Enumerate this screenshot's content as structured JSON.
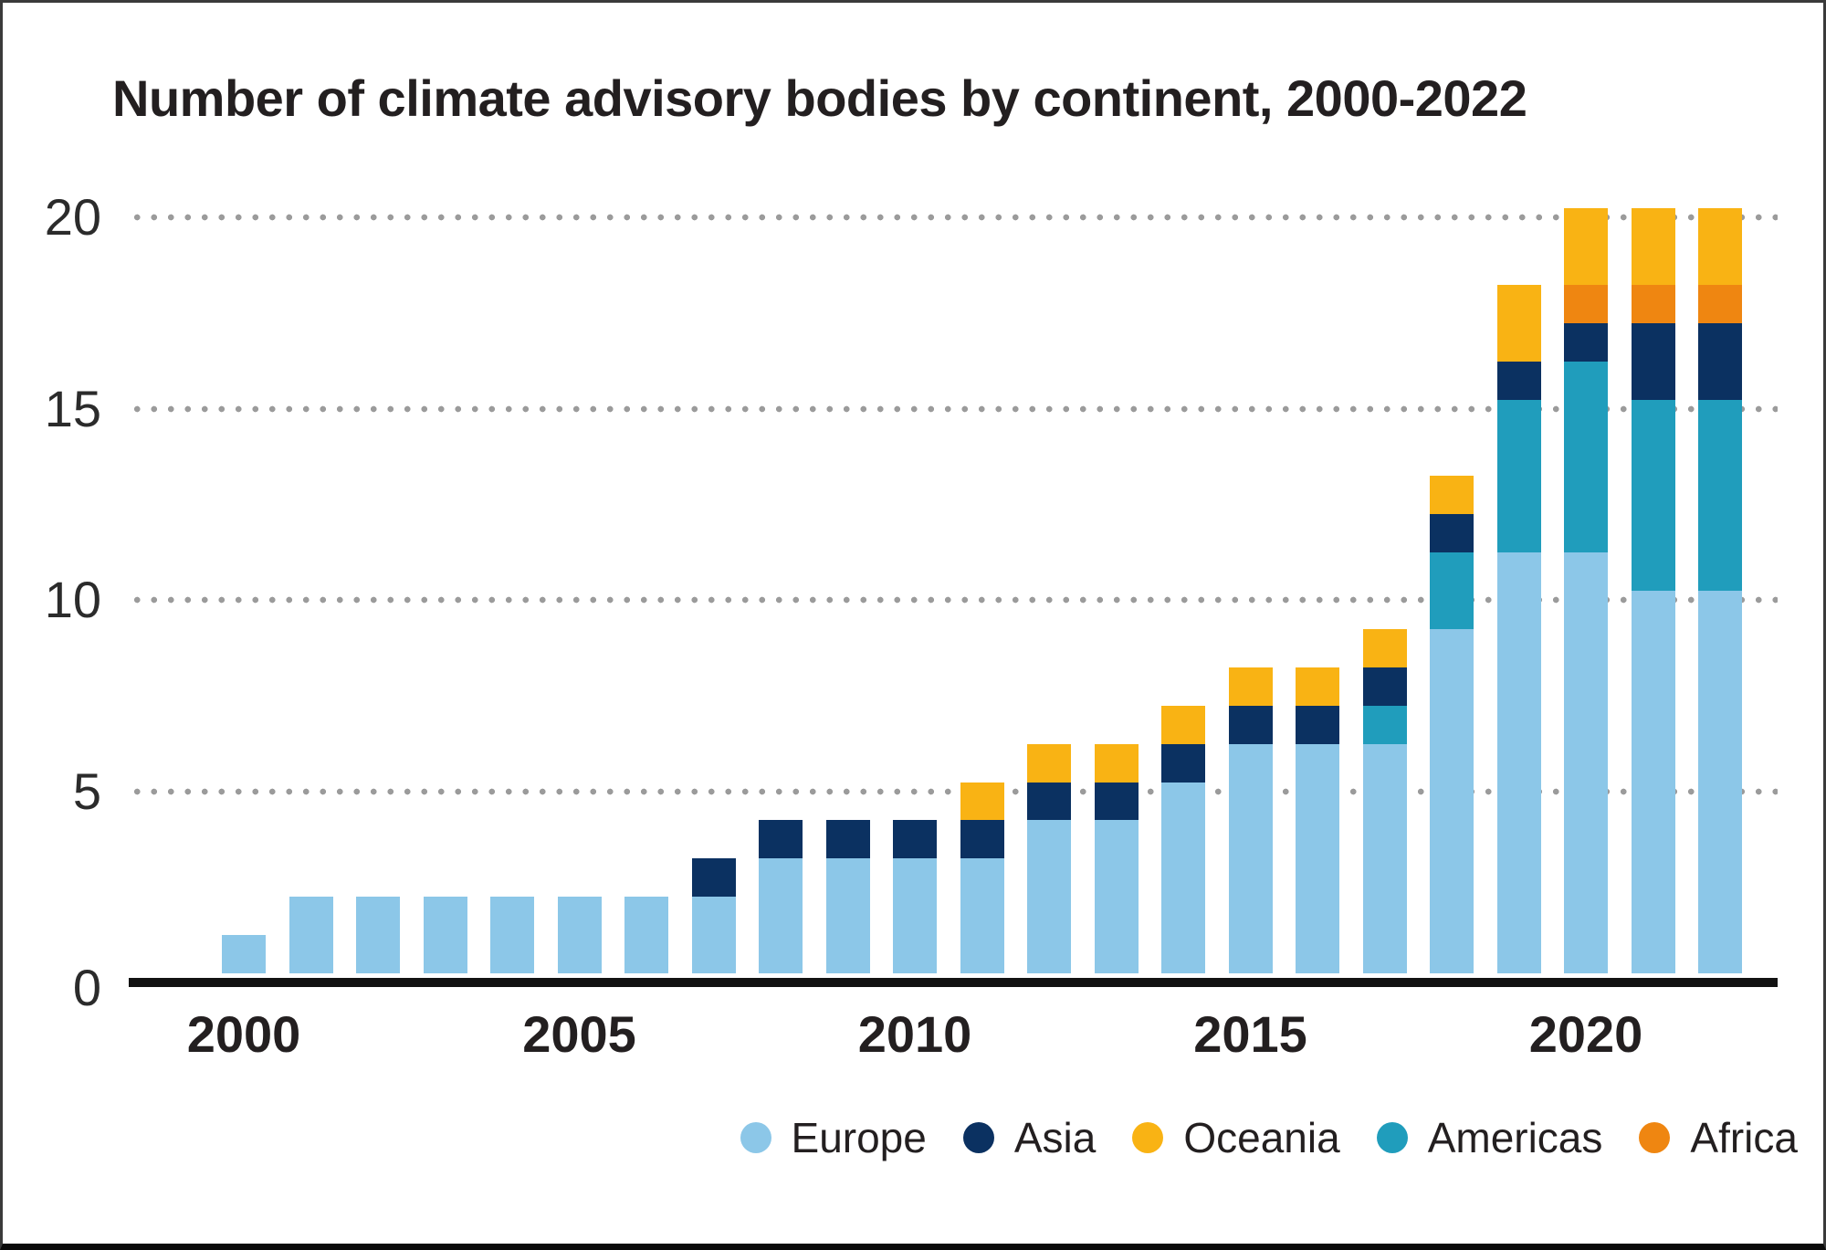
{
  "title": "Number of climate advisory bodies by continent, 2000-2022",
  "colors": {
    "background": "#ffffff",
    "text": "#231f20",
    "axis_line": "#121212",
    "grid_dot": "#9b9b9b",
    "border_top": "#3a3a3a",
    "border_bottom": "#0a0a0a"
  },
  "chart_data": {
    "type": "bar",
    "stacked": true,
    "title": "Number of climate advisory bodies by continent, 2000-2022",
    "xlabel": "",
    "ylabel": "",
    "x": [
      2000,
      2001,
      2002,
      2003,
      2004,
      2005,
      2006,
      2007,
      2008,
      2009,
      2010,
      2011,
      2012,
      2013,
      2014,
      2015,
      2016,
      2017,
      2018,
      2019,
      2020,
      2021,
      2022
    ],
    "xticks": [
      2000,
      2005,
      2010,
      2015,
      2020
    ],
    "yticks": [
      0,
      5,
      10,
      15,
      20
    ],
    "ylim": [
      0,
      20
    ],
    "grid": "horizontal dotted lines at 5,10,15,20",
    "legend_position": "bottom-right",
    "stack_order": "bottom to top as listed in series",
    "series": [
      {
        "name": "Europe",
        "color": "#8cc7e8",
        "values": [
          1,
          2,
          2,
          2,
          2,
          2,
          2,
          2,
          3,
          3,
          3,
          3,
          4,
          4,
          5,
          6,
          6,
          6,
          9,
          11,
          11,
          10,
          10
        ]
      },
      {
        "name": "Americas",
        "color": "#209dbc",
        "values": [
          0,
          0,
          0,
          0,
          0,
          0,
          0,
          0,
          0,
          0,
          0,
          0,
          0,
          0,
          0,
          0,
          0,
          1,
          2,
          4,
          5,
          5,
          5
        ]
      },
      {
        "name": "Asia",
        "color": "#0b3161",
        "values": [
          0,
          0,
          0,
          0,
          0,
          0,
          0,
          1,
          1,
          1,
          1,
          1,
          1,
          1,
          1,
          1,
          1,
          1,
          1,
          1,
          1,
          2,
          2
        ]
      },
      {
        "name": "Africa",
        "color": "#ef8611",
        "values": [
          0,
          0,
          0,
          0,
          0,
          0,
          0,
          0,
          0,
          0,
          0,
          0,
          0,
          0,
          0,
          0,
          0,
          0,
          0,
          0,
          1,
          1,
          1
        ]
      },
      {
        "name": "Oceania",
        "color": "#f9b314",
        "values": [
          0,
          0,
          0,
          0,
          0,
          0,
          0,
          0,
          0,
          0,
          0,
          1,
          1,
          1,
          1,
          1,
          1,
          1,
          1,
          2,
          2,
          2,
          2
        ]
      }
    ],
    "totals": [
      1,
      2,
      2,
      2,
      2,
      2,
      2,
      3,
      4,
      4,
      4,
      5,
      6,
      6,
      7,
      8,
      8,
      9,
      13,
      18,
      20,
      20,
      20
    ],
    "legend_order": [
      "Europe",
      "Asia",
      "Oceania",
      "Americas",
      "Africa"
    ]
  }
}
